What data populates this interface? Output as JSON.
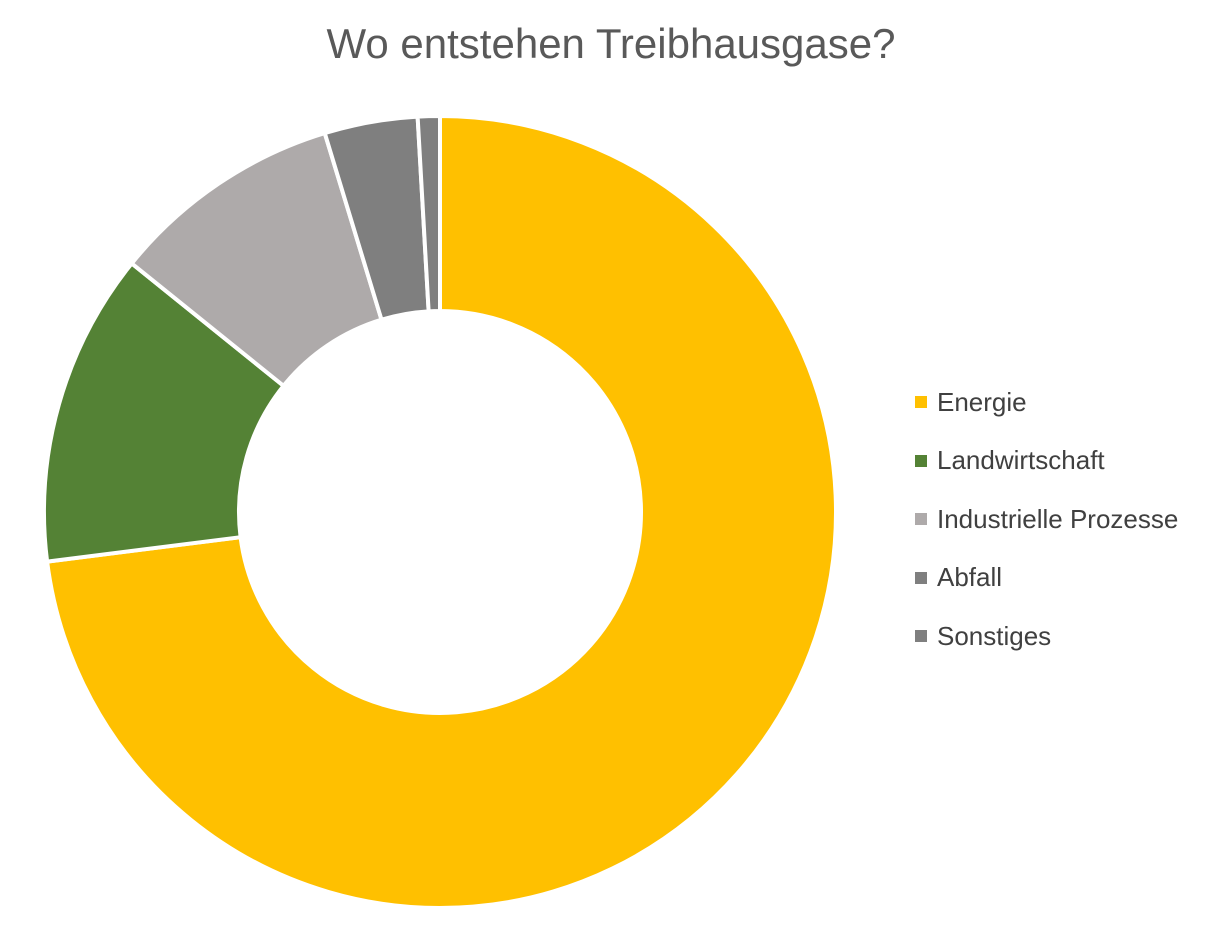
{
  "chart_data": {
    "type": "pie",
    "variant": "donut",
    "title": "Wo entstehen Treibhausgase?",
    "legend_position": "right",
    "series": [
      {
        "labels": [
          "Energie",
          "Landwirtschaft",
          "Industrielle Prozesse",
          "Abfall",
          "Sonstiges"
        ],
        "values": [
          73.0,
          12.8,
          9.5,
          3.8,
          0.9
        ],
        "colors": [
          "#FFC000",
          "#548235",
          "#AEAAAA",
          "#7F7F7F",
          "#7F7F7F"
        ]
      }
    ],
    "start_angle_deg": 0,
    "direction": "clockwise"
  }
}
